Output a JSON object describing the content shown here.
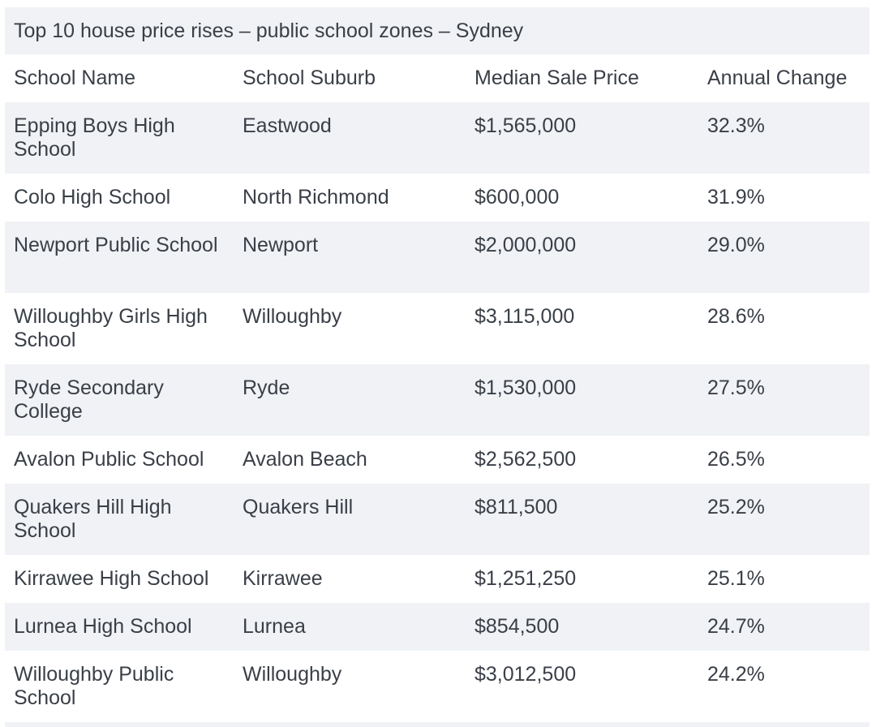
{
  "chart_data": {
    "type": "table",
    "title": "Top 10 house price rises – public school zones – Sydney",
    "columns": [
      "School Name",
      "School Suburb",
      "Median Sale Price",
      "Annual Change"
    ],
    "rows": [
      {
        "school": "Epping Boys High School",
        "suburb": "Eastwood",
        "price": "$1,565,000",
        "change": "32.3%"
      },
      {
        "school": "Colo High School",
        "suburb": "North Richmond",
        "price": "$600,000",
        "change": "31.9%"
      },
      {
        "school": "Newport Public School",
        "suburb": "Newport",
        "price": "$2,000,000",
        "change": "29.0%"
      },
      {
        "school": "Willoughby Girls High School",
        "suburb": "Willoughby",
        "price": "$3,115,000",
        "change": "28.6%"
      },
      {
        "school": "Ryde Secondary College",
        "suburb": "Ryde",
        "price": "$1,530,000",
        "change": "27.5%"
      },
      {
        "school": "Avalon Public School",
        "suburb": "Avalon Beach",
        "price": "$2,562,500",
        "change": "26.5%"
      },
      {
        "school": "Quakers Hill High School",
        "suburb": "Quakers Hill",
        "price": "$811,500",
        "change": "25.2%"
      },
      {
        "school": "Kirrawee High School",
        "suburb": "Kirrawee",
        "price": "$1,251,250",
        "change": "25.1%"
      },
      {
        "school": "Lurnea High School",
        "suburb": "Lurnea",
        "price": "$854,500",
        "change": "24.7%"
      },
      {
        "school": "Willoughby Public School",
        "suburb": "Willoughby",
        "price": "$3,012,500",
        "change": "24.2%"
      }
    ]
  },
  "colors": {
    "stripe": "#f0f2f5",
    "text": "#3a3f47"
  }
}
